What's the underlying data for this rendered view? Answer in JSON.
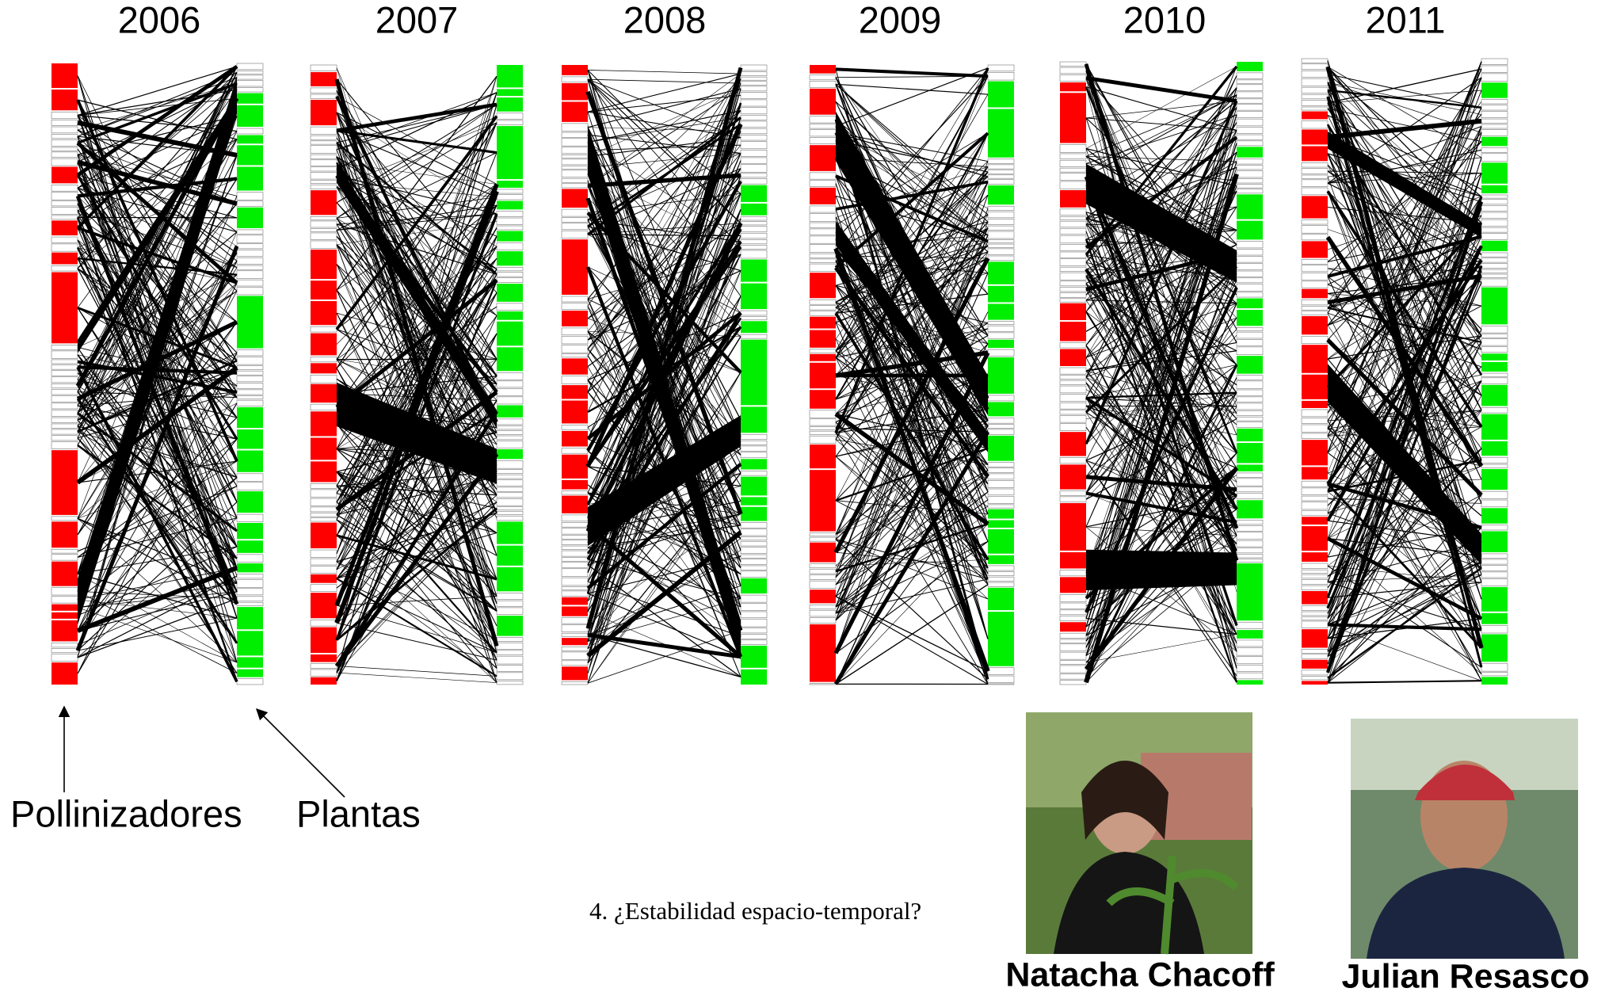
{
  "slide": {
    "years": [
      "2006",
      "2007",
      "2008",
      "2009",
      "2010",
      "2011"
    ],
    "labels": {
      "pollinators": "Pollinizadores",
      "plants": "Plantas"
    },
    "question": "4. ¿Estabilidad espacio-temporal?",
    "people": [
      "Natacha Chacoff",
      "Julian Resasco"
    ]
  }
}
